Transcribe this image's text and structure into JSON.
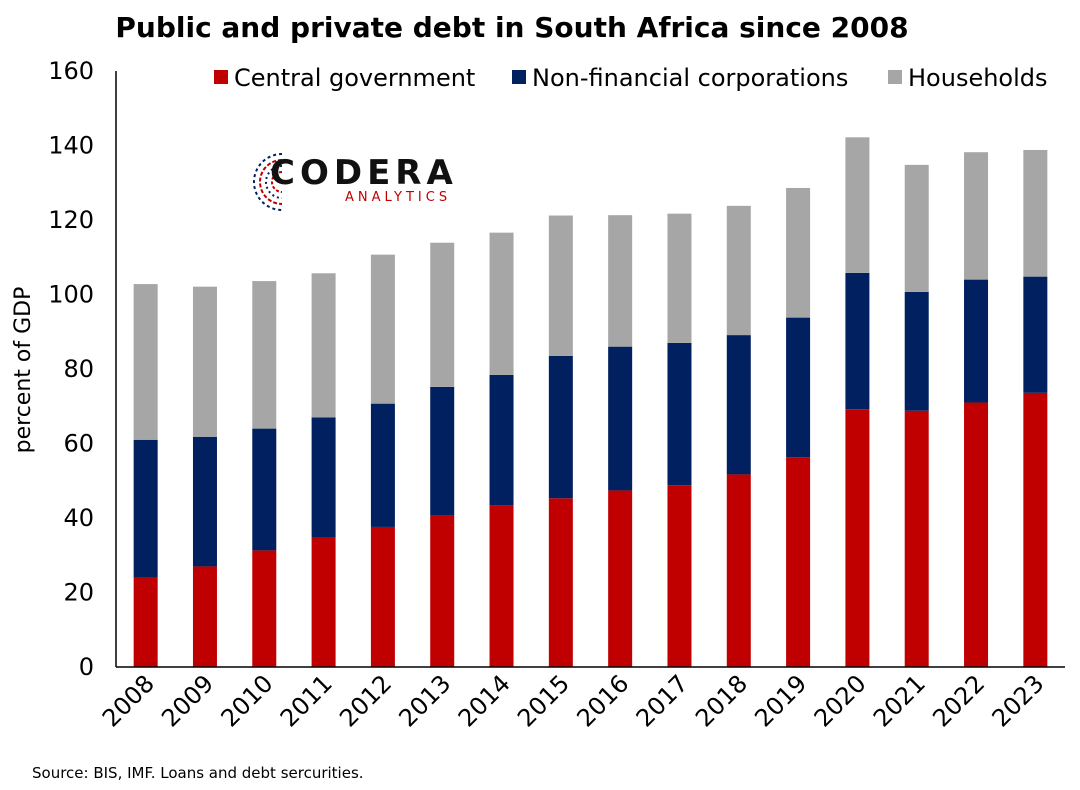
{
  "chart_data": {
    "type": "bar",
    "stacked": true,
    "title": "Public and private debt in South Africa since 2008",
    "ylabel": "percent of GDP",
    "xlabel": "",
    "ylim": [
      0,
      160
    ],
    "yticks": [
      0,
      20,
      40,
      60,
      80,
      100,
      120,
      140,
      160
    ],
    "categories": [
      "2008",
      "2009",
      "2010",
      "2011",
      "2012",
      "2013",
      "2014",
      "2015",
      "2016",
      "2017",
      "2018",
      "2019",
      "2020",
      "2021",
      "2022",
      "2023"
    ],
    "series": [
      {
        "name": "Central government",
        "color": "#c00000",
        "values": [
          24.0,
          27.0,
          31.3,
          34.9,
          37.6,
          40.6,
          43.4,
          45.3,
          47.4,
          48.8,
          51.7,
          56.3,
          69.2,
          68.8,
          71.0,
          73.6
        ]
      },
      {
        "name": "Non-financial corporations",
        "color": "#002060",
        "values": [
          37.0,
          34.8,
          32.7,
          32.1,
          33.1,
          34.6,
          35.0,
          38.2,
          38.6,
          38.2,
          37.4,
          37.5,
          36.6,
          31.9,
          33.0,
          31.2
        ]
      },
      {
        "name": "Households",
        "color": "#a6a6a6",
        "values": [
          41.8,
          40.3,
          39.6,
          38.7,
          40.0,
          38.7,
          38.2,
          37.7,
          35.3,
          34.7,
          34.7,
          34.8,
          36.4,
          34.1,
          34.2,
          34.0
        ]
      }
    ],
    "legend_position": "top",
    "grid": false
  },
  "logo": {
    "main": "CODERA",
    "sub": "ANALYTICS"
  },
  "source": "Source: BIS, IMF. Loans and debt sercurities."
}
